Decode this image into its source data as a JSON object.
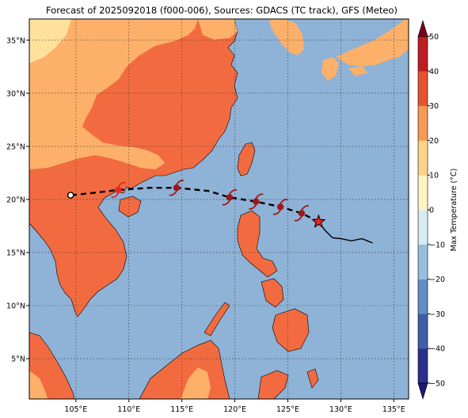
{
  "title": "Forecast of 2025092018 (f000-006), Sources: GDACS (TC track), GFS (Meteo)",
  "map": {
    "lon_range": [
      100.6,
      136.4
    ],
    "lat_range": [
      1.2,
      37.0
    ],
    "lon_ticks": [
      {
        "value": 105,
        "label": "105°E"
      },
      {
        "value": 110,
        "label": "110°E"
      },
      {
        "value": 115,
        "label": "115°E"
      },
      {
        "value": 120,
        "label": "120°E"
      },
      {
        "value": 125,
        "label": "125°E"
      },
      {
        "value": 130,
        "label": "130°E"
      },
      {
        "value": 135,
        "label": "135°E"
      }
    ],
    "lat_ticks": [
      {
        "value": 5,
        "label": "5°N"
      },
      {
        "value": 10,
        "label": "10°N"
      },
      {
        "value": 15,
        "label": "15°N"
      },
      {
        "value": 20,
        "label": "20°N"
      },
      {
        "value": 25,
        "label": "25°N"
      },
      {
        "value": 30,
        "label": "30°N"
      },
      {
        "value": 35,
        "label": "35°N"
      }
    ],
    "ocean_color": "#8fb2d7",
    "land_color_hot": "#f26b40",
    "land_color_warm": "#fdb06a",
    "land_color_mild": "#fee29c",
    "gridlines": true
  },
  "track": {
    "current_position": {
      "lon": 127.9,
      "lat": 17.9
    },
    "past_track": [
      [
        127.9,
        17.9
      ],
      [
        128.5,
        17.1
      ],
      [
        129.2,
        16.4
      ],
      [
        130.0,
        16.3
      ],
      [
        131.0,
        16.1
      ],
      [
        132.0,
        16.3
      ],
      [
        132.5,
        16.1
      ],
      [
        133.0,
        15.9
      ]
    ],
    "forecast_track": [
      [
        127.9,
        17.9
      ],
      [
        126.3,
        18.7
      ],
      [
        124.3,
        19.3
      ],
      [
        122.0,
        19.8
      ],
      [
        119.5,
        20.2
      ],
      [
        117.5,
        20.8
      ],
      [
        114.5,
        21.1
      ],
      [
        112.0,
        21.1
      ],
      [
        109.0,
        20.9
      ],
      [
        106.5,
        20.6
      ],
      [
        104.5,
        20.4
      ]
    ],
    "storm_symbols": [
      {
        "lon": 126.3,
        "lat": 18.7,
        "color": "#a01818"
      },
      {
        "lon": 124.3,
        "lat": 19.3,
        "color": "#a01818"
      },
      {
        "lon": 122.0,
        "lat": 19.8,
        "color": "#a01818"
      },
      {
        "lon": 119.5,
        "lat": 20.2,
        "color": "#a01818"
      },
      {
        "lon": 114.5,
        "lat": 21.1,
        "color": "#a01818"
      },
      {
        "lon": 109.0,
        "lat": 20.9,
        "color": "#e8281e"
      }
    ],
    "dissipation_point": {
      "lon": 104.5,
      "lat": 20.4
    }
  },
  "colorbar": {
    "label": "Max Temperature (°C)",
    "ticks": [
      -50,
      -40,
      -30,
      -20,
      -10,
      0,
      10,
      20,
      30,
      40,
      50
    ],
    "colors": [
      "#313695",
      "#4575b4",
      "#74add1",
      "#abd9e9",
      "#e0f3f8",
      "#ffffbf",
      "#fee090",
      "#fdae61",
      "#f46d43",
      "#d73027",
      "#a50026"
    ],
    "extend_colors": {
      "low": "#1a1a6e",
      "high": "#7a001e"
    }
  }
}
